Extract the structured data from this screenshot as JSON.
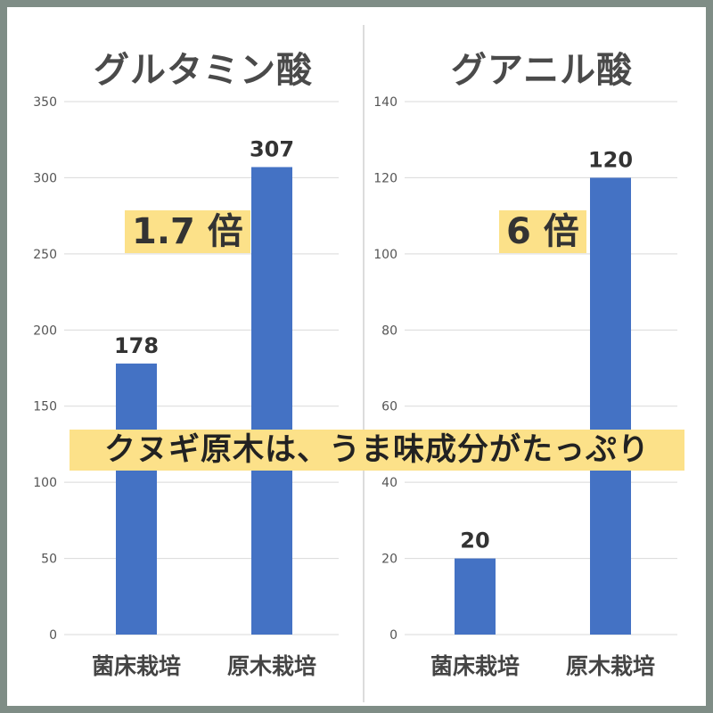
{
  "colors": {
    "bar": "#4472c4",
    "grid": "#d9d9d9",
    "highlight": "#fce189",
    "frame": "#7f8d86"
  },
  "chart_data": [
    {
      "type": "bar",
      "title": "グルタミン酸",
      "categories": [
        "菌床栽培",
        "原木栽培"
      ],
      "values": [
        178,
        307
      ],
      "ylim": [
        0,
        350
      ],
      "yticks": [
        "0",
        "50",
        "100",
        "150",
        "200",
        "250",
        "300",
        "350"
      ],
      "data_labels": [
        "178",
        "307"
      ],
      "grid": true,
      "annotation": "1.7 倍"
    },
    {
      "type": "bar",
      "title": "グアニル酸",
      "categories": [
        "菌床栽培",
        "原木栽培"
      ],
      "values": [
        20,
        120
      ],
      "ylim": [
        0,
        140
      ],
      "yticks": [
        "0",
        "20",
        "40",
        "60",
        "80",
        "100",
        "120",
        "140"
      ],
      "data_labels": [
        "20",
        "120"
      ],
      "grid": true,
      "annotation": "6 倍"
    }
  ],
  "banner": "クヌギ原木は、うま味成分がたっぷり"
}
